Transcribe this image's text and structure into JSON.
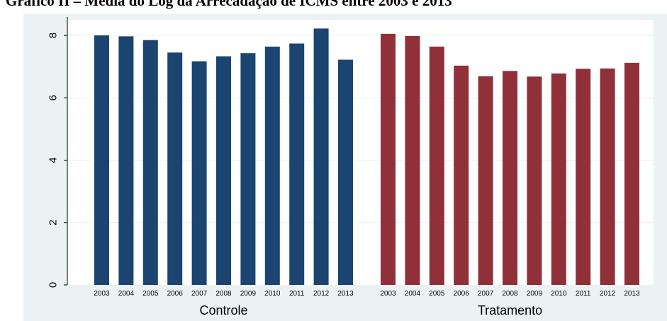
{
  "page": {
    "title": "Gráfico II – Média do Log da Arrecadação de ICMS entre 2003 e 2013"
  },
  "colors": {
    "frame_background": "#eaf2f3",
    "plot_background": "#ffffff",
    "grid": "#e9eff1",
    "controle": "#1b4570",
    "tratamento": "#903038"
  },
  "chart_data": {
    "type": "bar",
    "ylim": [
      0,
      8.5
    ],
    "yticks": [
      "0",
      "2",
      "4",
      "6",
      "8"
    ],
    "grid": true,
    "categories": [
      "2003",
      "2004",
      "2005",
      "2006",
      "2007",
      "2008",
      "2009",
      "2010",
      "2011",
      "2012",
      "2013"
    ],
    "series": [
      {
        "name": "Controle",
        "values": [
          8.0,
          7.97,
          7.85,
          7.45,
          7.17,
          7.33,
          7.43,
          7.64,
          7.74,
          8.22,
          7.22
        ]
      },
      {
        "name": "Tratamento",
        "values": [
          8.05,
          7.98,
          7.64,
          7.03,
          6.69,
          6.86,
          6.68,
          6.78,
          6.93,
          6.94,
          7.12
        ]
      }
    ]
  }
}
